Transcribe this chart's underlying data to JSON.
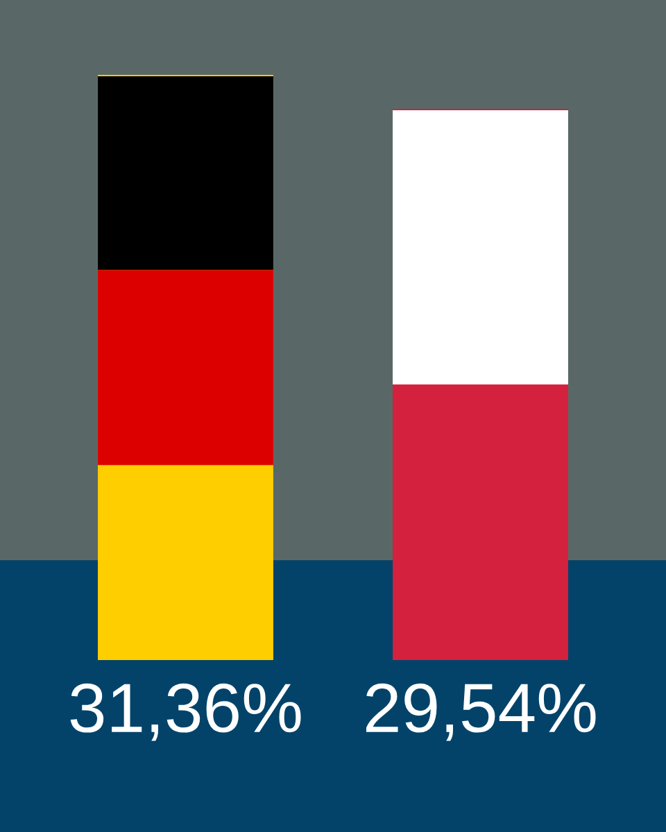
{
  "chart_data": {
    "type": "bar",
    "categories": [
      null,
      null
    ],
    "values": [
      31.36,
      29.54
    ],
    "colors": [
      "#ffce00",
      "#d4213d"
    ],
    "value_labels": [
      "31,36%",
      "29,54%"
    ]
  }
}
